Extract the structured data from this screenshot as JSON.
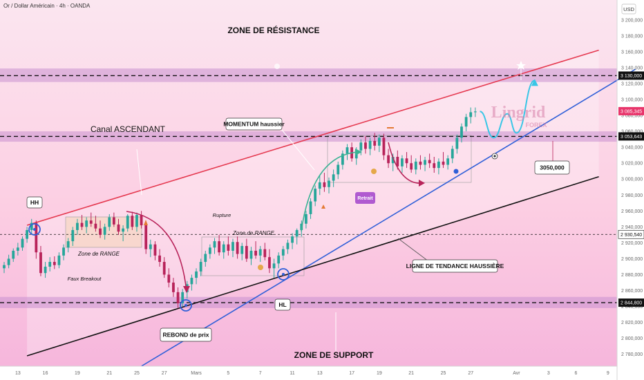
{
  "instrument": "Or / Dollar Américain · 4h · OANDA",
  "currency": "USD",
  "colors": {
    "bull": "#26a69a",
    "bear": "#b8235a",
    "resistance_line": "#e53950",
    "trend_line": "#2f5fd8",
    "support_line": "#111111",
    "zone_band": "#c98fcf",
    "price_tag": "#e8356b",
    "watermark": "#d77fa8"
  },
  "annotations": {
    "resistance_zone": "ZONE DE RÉSISTANCE",
    "support_zone": "ZONE DE SUPPORT",
    "channel": "Canal ASCENDANT",
    "momentum": "MOMENTUM haussier",
    "range1": "Zone de RANGE",
    "range2": "Zone de RANGE",
    "fake_breakout": "Faux Breakout",
    "rupture": "Rupture",
    "retrait": "Retrait",
    "trend_line": "LIGNE DE TENDANCE HAUSSIÈRE",
    "rebound": "REBOND de prix",
    "hh": "HH",
    "hl": "HL",
    "target": "3050,000",
    "watermark_1": "Lingrid",
    "watermark_2": "FOREX"
  },
  "chart_data": {
    "type": "candlestick",
    "title": "Or / Dollar Américain · 4h · OANDA",
    "ylabel": "USD",
    "ylim": [
      2765,
      3225
    ],
    "y_ticks": [
      "3 200,000",
      "3 180,000",
      "3 160,000",
      "3 140,000",
      "3 120,000",
      "3 100,000",
      "3 080,000",
      "3 060,000",
      "3 040,000",
      "3 020,000",
      "3 000,000",
      "2 980,000",
      "2 960,000",
      "2 940,000",
      "2 920,000",
      "2 900,000",
      "2 880,000",
      "2 860,000",
      "2 840,000",
      "2 820,000",
      "2 800,000",
      "2 780,000"
    ],
    "y_tick_values": [
      3200,
      3180,
      3160,
      3140,
      3120,
      3100,
      3080,
      3060,
      3040,
      3020,
      3000,
      2980,
      2960,
      2940,
      2920,
      2900,
      2880,
      2860,
      2840,
      2820,
      2800,
      2780
    ],
    "x_ticks": [
      {
        "label": "13",
        "bar": 3
      },
      {
        "label": "16",
        "bar": 9
      },
      {
        "label": "19",
        "bar": 16
      },
      {
        "label": "21",
        "bar": 23
      },
      {
        "label": "25",
        "bar": 29
      },
      {
        "label": "27",
        "bar": 35
      },
      {
        "label": "Mars",
        "bar": 42
      },
      {
        "label": "5",
        "bar": 49
      },
      {
        "label": "7",
        "bar": 56
      },
      {
        "label": "11",
        "bar": 63
      },
      {
        "label": "13",
        "bar": 69
      },
      {
        "label": "17",
        "bar": 76
      },
      {
        "label": "19",
        "bar": 82
      },
      {
        "label": "21",
        "bar": 89
      },
      {
        "label": "25",
        "bar": 96
      },
      {
        "label": "27",
        "bar": 102
      },
      {
        "label": "Avr",
        "bar": 112
      },
      {
        "label": "3",
        "bar": 119
      },
      {
        "label": "6",
        "bar": 125
      },
      {
        "label": "9",
        "bar": 132
      }
    ],
    "price_labels": [
      {
        "text": "3 130,000",
        "value": 3130,
        "style": "dark"
      },
      {
        "text": "3 085,345",
        "value": 3085.345,
        "style": "red"
      },
      {
        "text": "3 053,643",
        "value": 3053.643,
        "style": "dark"
      },
      {
        "text": "2 930,540",
        "value": 2930.54,
        "style": "outline"
      },
      {
        "text": "2 844,800",
        "value": 2844.8,
        "style": "dark"
      }
    ],
    "horizontal_levels": [
      3130,
      3053.643,
      2930.54,
      2844.8
    ],
    "zones": [
      {
        "from": 3122,
        "to": 3139
      },
      {
        "from": 3047,
        "to": 3060
      },
      {
        "from": 2838,
        "to": 2852
      }
    ],
    "lines": [
      {
        "name": "resistance",
        "points": [
          [
            5,
            2942
          ],
          [
            130,
            3162
          ]
        ]
      },
      {
        "name": "trend",
        "points": [
          [
            30,
            2765
          ],
          [
            138,
            3138
          ]
        ]
      },
      {
        "name": "support",
        "points": [
          [
            5,
            2778
          ],
          [
            130,
            3003
          ]
        ]
      }
    ],
    "candles": [
      [
        2888,
        2896,
        2882,
        2892
      ],
      [
        2892,
        2905,
        2888,
        2900
      ],
      [
        2900,
        2913,
        2896,
        2910
      ],
      [
        2910,
        2920,
        2904,
        2914
      ],
      [
        2914,
        2928,
        2910,
        2925
      ],
      [
        2925,
        2940,
        2920,
        2936
      ],
      [
        2936,
        2950,
        2930,
        2945
      ],
      [
        2945,
        2948,
        2900,
        2908
      ],
      [
        2908,
        2916,
        2878,
        2882
      ],
      [
        2882,
        2896,
        2876,
        2890
      ],
      [
        2890,
        2902,
        2884,
        2896
      ],
      [
        2896,
        2903,
        2887,
        2892
      ],
      [
        2892,
        2908,
        2888,
        2904
      ],
      [
        2904,
        2918,
        2898,
        2914
      ],
      [
        2914,
        2926,
        2908,
        2922
      ],
      [
        2922,
        2940,
        2916,
        2936
      ],
      [
        2936,
        2950,
        2930,
        2945
      ],
      [
        2945,
        2955,
        2936,
        2940
      ],
      [
        2940,
        2952,
        2932,
        2948
      ],
      [
        2948,
        2958,
        2940,
        2944
      ],
      [
        2944,
        2954,
        2934,
        2938
      ],
      [
        2938,
        2948,
        2926,
        2930
      ],
      [
        2930,
        2944,
        2924,
        2940
      ],
      [
        2940,
        2956,
        2935,
        2952
      ],
      [
        2952,
        2958,
        2940,
        2943
      ],
      [
        2943,
        2950,
        2930,
        2934
      ],
      [
        2934,
        2942,
        2922,
        2938
      ],
      [
        2938,
        2956,
        2934,
        2954
      ],
      [
        2954,
        2959,
        2936,
        2940
      ],
      [
        2940,
        2958,
        2934,
        2955
      ],
      [
        2955,
        2960,
        2938,
        2942
      ],
      [
        2942,
        2946,
        2906,
        2912
      ],
      [
        2912,
        2924,
        2902,
        2918
      ],
      [
        2918,
        2922,
        2898,
        2904
      ],
      [
        2904,
        2912,
        2890,
        2896
      ],
      [
        2896,
        2902,
        2876,
        2880
      ],
      [
        2880,
        2888,
        2864,
        2870
      ],
      [
        2870,
        2876,
        2852,
        2858
      ],
      [
        2858,
        2864,
        2838,
        2844
      ],
      [
        2844,
        2862,
        2840,
        2858
      ],
      [
        2858,
        2872,
        2850,
        2868
      ],
      [
        2868,
        2880,
        2860,
        2876
      ],
      [
        2876,
        2888,
        2868,
        2884
      ],
      [
        2884,
        2900,
        2878,
        2896
      ],
      [
        2896,
        2910,
        2890,
        2906
      ],
      [
        2906,
        2918,
        2900,
        2914
      ],
      [
        2914,
        2926,
        2906,
        2922
      ],
      [
        2922,
        2930,
        2904,
        2908
      ],
      [
        2908,
        2922,
        2900,
        2918
      ],
      [
        2918,
        2928,
        2904,
        2910
      ],
      [
        2910,
        2925,
        2902,
        2921
      ],
      [
        2921,
        2928,
        2900,
        2906
      ],
      [
        2906,
        2920,
        2898,
        2916
      ],
      [
        2916,
        2925,
        2896,
        2900
      ],
      [
        2900,
        2915,
        2892,
        2910
      ],
      [
        2910,
        2922,
        2900,
        2904
      ],
      [
        2904,
        2916,
        2896,
        2912
      ],
      [
        2912,
        2920,
        2898,
        2902
      ],
      [
        2902,
        2912,
        2882,
        2888
      ],
      [
        2888,
        2900,
        2876,
        2894
      ],
      [
        2894,
        2908,
        2888,
        2904
      ],
      [
        2904,
        2916,
        2898,
        2912
      ],
      [
        2912,
        2924,
        2906,
        2920
      ],
      [
        2920,
        2932,
        2912,
        2928
      ],
      [
        2928,
        2938,
        2918,
        2936
      ],
      [
        2936,
        2948,
        2928,
        2944
      ],
      [
        2944,
        2960,
        2938,
        2956
      ],
      [
        2956,
        2976,
        2950,
        2972
      ],
      [
        2972,
        2992,
        2966,
        2988
      ],
      [
        2988,
        3004,
        2980,
        2996
      ],
      [
        2996,
        3008,
        2984,
        2990
      ],
      [
        2990,
        3002,
        2982,
        2998
      ],
      [
        2998,
        3012,
        2990,
        3006
      ],
      [
        3006,
        3022,
        3000,
        3018
      ],
      [
        3018,
        3036,
        3012,
        3032
      ],
      [
        3032,
        3044,
        3024,
        3040
      ],
      [
        3040,
        3046,
        3022,
        3026
      ],
      [
        3026,
        3040,
        3018,
        3036
      ],
      [
        3036,
        3050,
        3030,
        3046
      ],
      [
        3046,
        3054,
        3032,
        3038
      ],
      [
        3038,
        3052,
        3030,
        3048
      ],
      [
        3048,
        3058,
        3036,
        3042
      ],
      [
        3042,
        3056,
        3034,
        3052
      ],
      [
        3052,
        3057,
        3024,
        3030
      ],
      [
        3030,
        3038,
        3014,
        3020
      ],
      [
        3020,
        3032,
        3010,
        3028
      ],
      [
        3028,
        3036,
        3012,
        3016
      ],
      [
        3016,
        3030,
        3008,
        3026
      ],
      [
        3026,
        3034,
        3014,
        3020
      ],
      [
        3020,
        3030,
        3008,
        3012
      ],
      [
        3012,
        3026,
        3006,
        3022
      ],
      [
        3022,
        3030,
        3012,
        3018
      ],
      [
        3018,
        3028,
        3010,
        3024
      ],
      [
        3024,
        3032,
        3014,
        3020
      ],
      [
        3020,
        3028,
        3008,
        3014
      ],
      [
        3014,
        3026,
        3006,
        3022
      ],
      [
        3022,
        3034,
        3014,
        3018
      ],
      [
        3018,
        3030,
        3012,
        3026
      ],
      [
        3026,
        3042,
        3020,
        3038
      ],
      [
        3038,
        3056,
        3032,
        3052
      ],
      [
        3052,
        3070,
        3046,
        3066
      ],
      [
        3066,
        3082,
        3060,
        3078
      ],
      [
        3078,
        3090,
        3070,
        3084
      ],
      [
        3084,
        3090,
        3078,
        3085
      ]
    ],
    "projection": [
      [
        104,
        3085
      ],
      [
        107,
        3052
      ],
      [
        110,
        3082
      ],
      [
        112,
        3058
      ],
      [
        116,
        3124
      ]
    ]
  }
}
